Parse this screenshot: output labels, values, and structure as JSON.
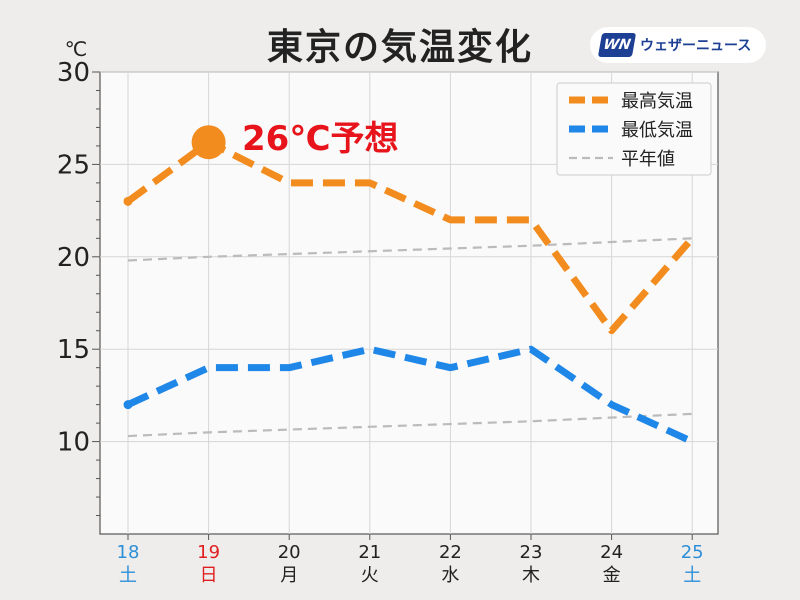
{
  "header": {
    "title": "東京の気温変化",
    "brand_mark": "WN",
    "brand_name": "ウェザーニュース"
  },
  "chart_data": {
    "type": "line",
    "unit_label": "℃",
    "ylim": [
      5,
      30
    ],
    "yticks": [
      10,
      15,
      20,
      25,
      30
    ],
    "grid": true,
    "legend_position": "top-right",
    "categories": [
      {
        "day": "18",
        "weekday": "土",
        "color": "#2c8fd8"
      },
      {
        "day": "19",
        "weekday": "日",
        "color": "#e02020"
      },
      {
        "day": "20",
        "weekday": "月",
        "color": "#222222"
      },
      {
        "day": "21",
        "weekday": "火",
        "color": "#222222"
      },
      {
        "day": "22",
        "weekday": "水",
        "color": "#222222"
      },
      {
        "day": "23",
        "weekday": "木",
        "color": "#222222"
      },
      {
        "day": "24",
        "weekday": "金",
        "color": "#222222"
      },
      {
        "day": "25",
        "weekday": "土",
        "color": "#2c8fd8"
      }
    ],
    "series": [
      {
        "name": "最高気温",
        "color": "#f28c1e",
        "style": "dashed-thick",
        "values": [
          23,
          26.2,
          24,
          24,
          22,
          22,
          16,
          21
        ]
      },
      {
        "name": "最低気温",
        "color": "#1e87e8",
        "style": "dashed-thick",
        "values": [
          12,
          14,
          14,
          15,
          14,
          15,
          12,
          10
        ]
      },
      {
        "name": "平年値",
        "color": "#bbbbbb",
        "style": "dashed-thin",
        "values": [
          19.8,
          20.0,
          20.15,
          20.3,
          20.45,
          20.6,
          20.8,
          21.0
        ]
      },
      {
        "name": "",
        "color": "#bbbbbb",
        "style": "dashed-thin",
        "values": [
          10.3,
          10.5,
          10.65,
          10.8,
          10.95,
          11.1,
          11.3,
          11.5
        ]
      }
    ],
    "annotation": {
      "text": "26℃予想",
      "color": "#e8141c",
      "category_index": 1,
      "value": 26.2
    }
  }
}
